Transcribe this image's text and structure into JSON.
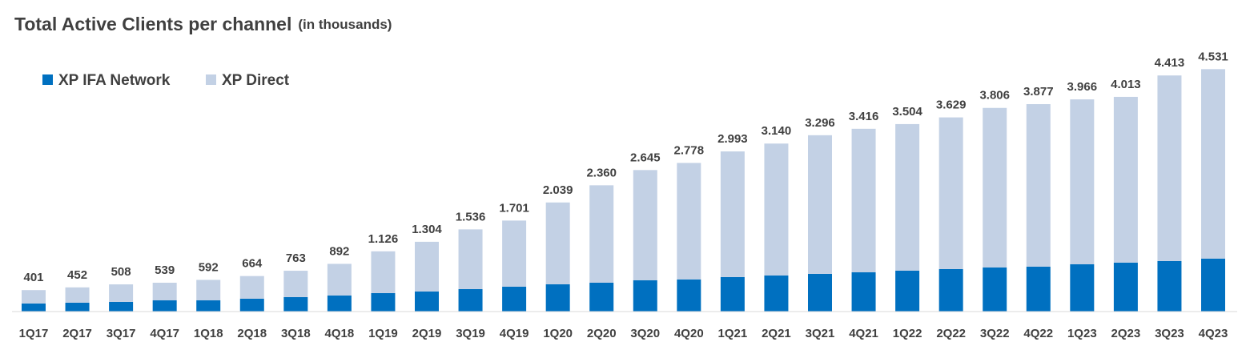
{
  "chart_data": {
    "type": "stacked-bar",
    "title": "Total Active Clients per channel",
    "subtitle": "(in thousands)",
    "categories": [
      "1Q17",
      "2Q17",
      "3Q17",
      "4Q17",
      "1Q18",
      "2Q18",
      "3Q18",
      "4Q18",
      "1Q19",
      "2Q19",
      "3Q19",
      "4Q19",
      "1Q20",
      "2Q20",
      "3Q20",
      "4Q20",
      "1Q21",
      "2Q21",
      "3Q21",
      "4Q21",
      "1Q22",
      "2Q22",
      "3Q22",
      "4Q22",
      "1Q23",
      "2Q23",
      "3Q23",
      "4Q23"
    ],
    "series": [
      {
        "name": "XP IFA Network",
        "color": "#0070c0",
        "values": [
          150,
          165,
          180,
          210,
          210,
          240,
          270,
          300,
          345,
          375,
          420,
          465,
          510,
          540,
          585,
          600,
          645,
          675,
          705,
          735,
          765,
          795,
          825,
          840,
          885,
          915,
          945,
          990
        ]
      },
      {
        "name": "XP Direct",
        "color": "#c3d1e5",
        "values": [
          251,
          287,
          328,
          329,
          382,
          424,
          493,
          592,
          781,
          929,
          1116,
          1236,
          1529,
          1820,
          2060,
          2178,
          2348,
          2465,
          2591,
          2681,
          2739,
          2834,
          2981,
          3037,
          3081,
          3098,
          3468,
          3541
        ]
      }
    ],
    "totals": {
      "values": [
        401,
        452,
        508,
        539,
        592,
        664,
        763,
        892,
        1126,
        1304,
        1536,
        1701,
        2039,
        2360,
        2645,
        2778,
        2993,
        3140,
        3296,
        3416,
        3504,
        3629,
        3806,
        3877,
        3966,
        4013,
        4413,
        4531
      ],
      "value_labels": [
        "401",
        "452",
        "508",
        "539",
        "592",
        "664",
        "763",
        "892",
        "1.126",
        "1.304",
        "1.536",
        "1.701",
        "2.039",
        "2.360",
        "2.645",
        "2.778",
        "2.993",
        "3.140",
        "3.296",
        "3.416",
        "3.504",
        "3.629",
        "3.806",
        "3.877",
        "3.966",
        "4.013",
        "4.413",
        "4.531"
      ]
    },
    "ylim": [
      0,
      5000
    ],
    "legend": "top-left"
  }
}
